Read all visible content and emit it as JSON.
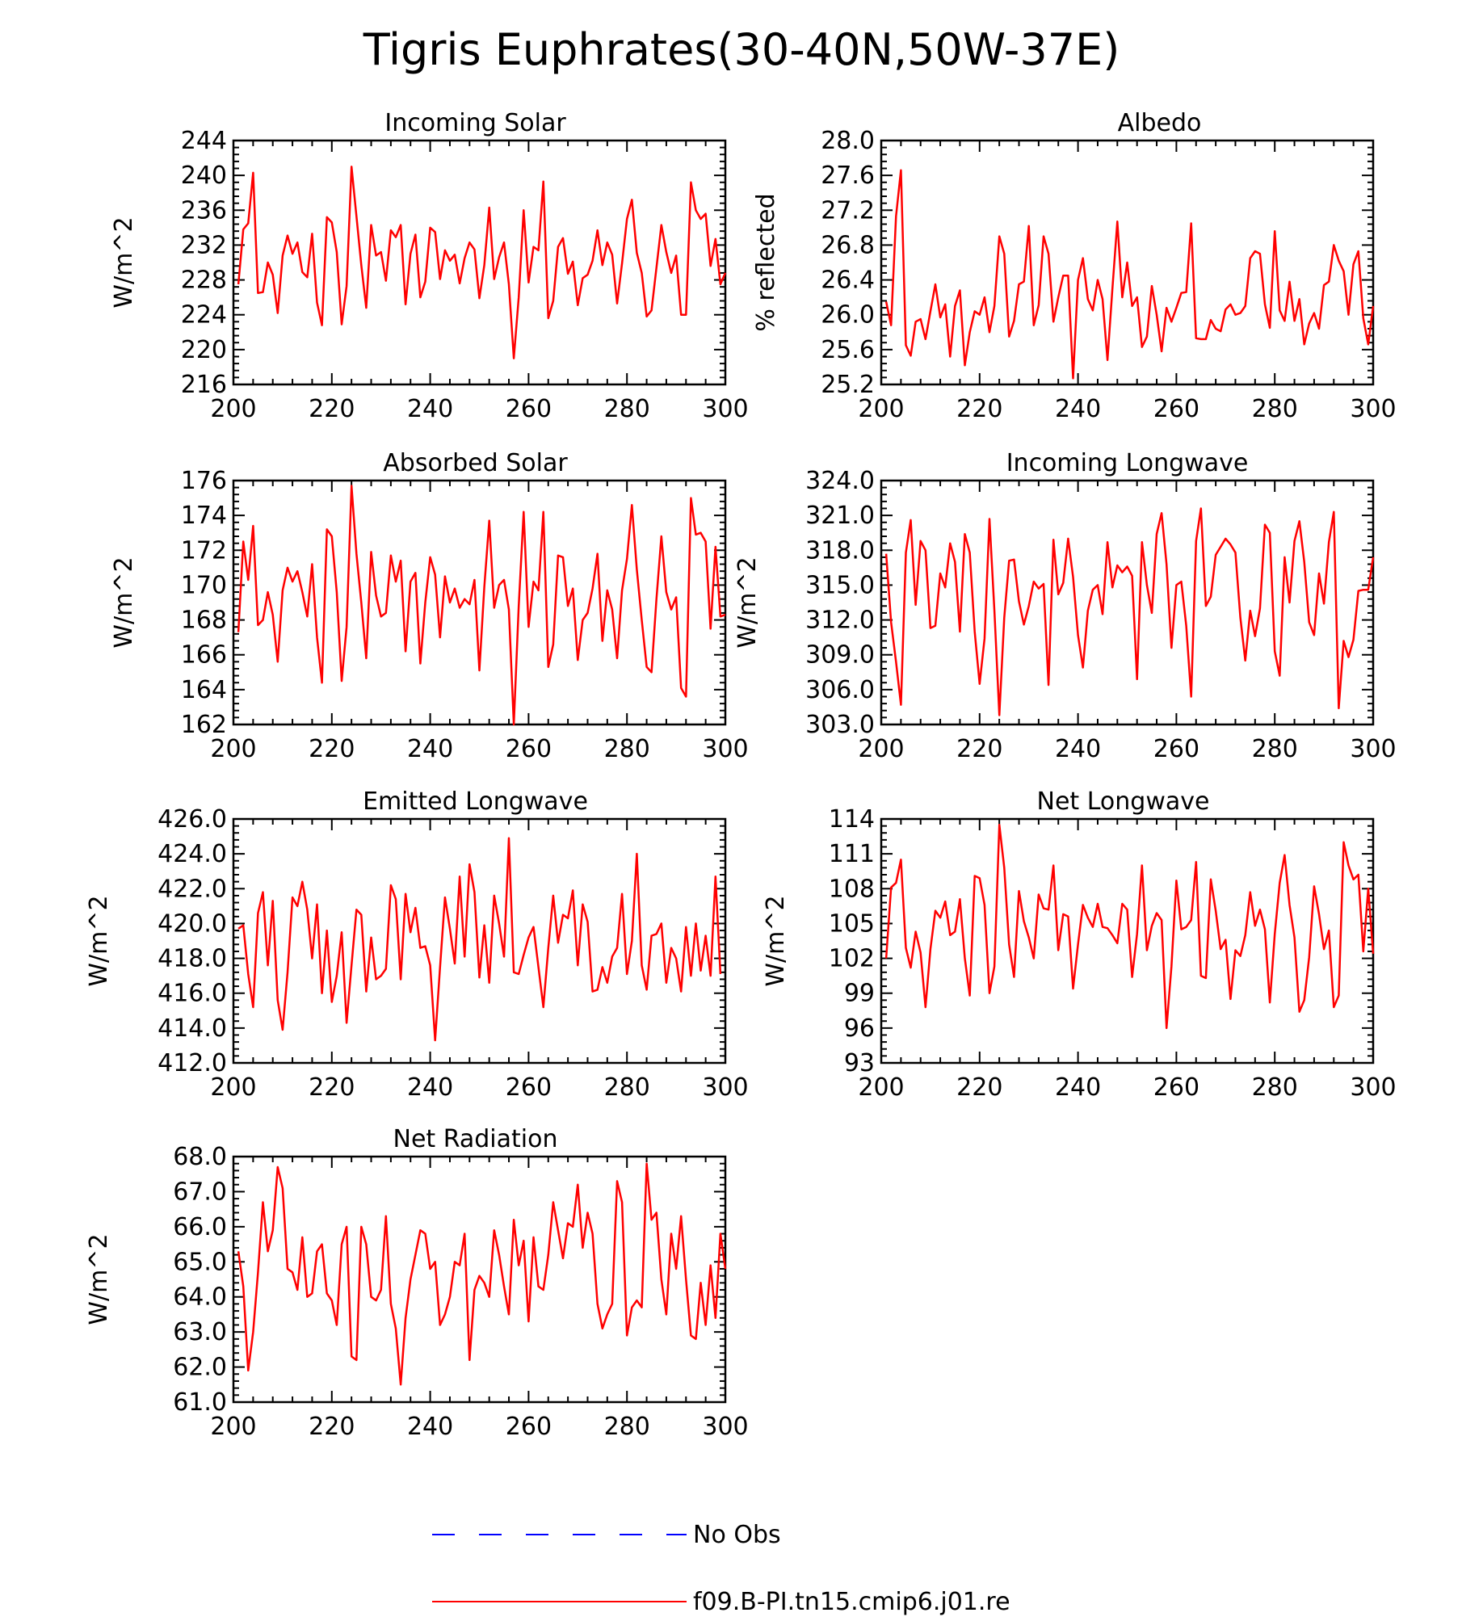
{
  "title": "Tigris Euphrates(30-40N,50W-37E)",
  "colors": {
    "model": "#ff0000",
    "obs": "#0000ff",
    "axis": "#000000"
  },
  "legend": {
    "obs_label": "No Obs",
    "model_label": "f09.B-PI.tn15.cmip6.j01.re"
  },
  "chart_data": [
    {
      "type": "line",
      "title": "Incoming Solar",
      "ylabel": "W/m^2",
      "xlim": [
        200,
        300
      ],
      "ylim": [
        216,
        244
      ],
      "xticks": [
        "200",
        "220",
        "240",
        "260",
        "280",
        "300"
      ],
      "yticks": [
        "216",
        "220",
        "224",
        "228",
        "232",
        "236",
        "240",
        "244"
      ],
      "x_start": 201,
      "series": [
        {
          "name": "f09.B-PI.tn15.cmip6.j01.re",
          "values": [
            227.5,
            233.8,
            234.5,
            240.3,
            226.5,
            226.6,
            230.0,
            228.6,
            224.2,
            230.8,
            233.1,
            231.0,
            232.3,
            228.9,
            228.3,
            233.3,
            225.4,
            222.8,
            235.2,
            234.6,
            231.2,
            222.9,
            227.3,
            241.0,
            235.3,
            229.7,
            224.8,
            234.3,
            230.8,
            231.2,
            227.9,
            233.7,
            232.9,
            234.3,
            225.2,
            231.0,
            233.2,
            226.0,
            227.8,
            234.0,
            233.5,
            228.1,
            231.4,
            230.2,
            230.9,
            227.6,
            230.5,
            232.3,
            231.5,
            225.9,
            229.7,
            236.3,
            228.1,
            230.6,
            232.3,
            227.5,
            219.0,
            226.0,
            236.0,
            227.7,
            231.8,
            231.4,
            239.3,
            223.6,
            225.6,
            231.8,
            232.8,
            228.7,
            230.1,
            225.1,
            228.2,
            228.6,
            230.2,
            233.7,
            229.7,
            232.3,
            230.9,
            225.3,
            229.9,
            235.0,
            237.2,
            231.1,
            228.8,
            223.8,
            224.5,
            229.4,
            234.3,
            231.2,
            228.8,
            230.8,
            224.0,
            224.0,
            239.2,
            236.0,
            235.0,
            235.6,
            229.6,
            232.7,
            227.5,
            228.8
          ]
        }
      ]
    },
    {
      "type": "line",
      "title": "Albedo",
      "ylabel": "% reflected",
      "xlim": [
        200,
        300
      ],
      "ylim": [
        25.2,
        28.0
      ],
      "xticks": [
        "200",
        "220",
        "240",
        "260",
        "280",
        "300"
      ],
      "yticks": [
        "25.2",
        "25.6",
        "26.0",
        "26.4",
        "26.8",
        "27.2",
        "27.6",
        "28.0"
      ],
      "x_start": 201,
      "series": [
        {
          "name": "f09.B-PI.tn15.cmip6.j01.re",
          "values": [
            26.15,
            25.88,
            27.13,
            27.66,
            25.65,
            25.53,
            25.92,
            25.95,
            25.72,
            26.04,
            26.35,
            25.97,
            26.12,
            25.52,
            26.1,
            26.28,
            25.42,
            25.8,
            26.04,
            26.0,
            26.2,
            25.8,
            26.1,
            26.9,
            26.7,
            25.75,
            25.93,
            26.35,
            26.38,
            27.02,
            25.88,
            26.11,
            26.9,
            26.7,
            25.92,
            26.2,
            26.45,
            26.45,
            25.27,
            26.4,
            26.65,
            26.18,
            26.05,
            26.4,
            26.18,
            25.48,
            26.3,
            27.07,
            26.2,
            26.6,
            26.1,
            26.2,
            25.63,
            25.75,
            26.33,
            26.0,
            25.58,
            26.08,
            25.92,
            26.08,
            26.25,
            26.26,
            27.05,
            25.73,
            25.72,
            25.72,
            25.94,
            25.84,
            25.81,
            26.06,
            26.12,
            26.0,
            26.02,
            26.1,
            26.65,
            26.73,
            26.7,
            26.12,
            25.85,
            26.96,
            26.05,
            25.93,
            26.38,
            25.93,
            26.18,
            25.66,
            25.9,
            26.02,
            25.84,
            26.34,
            26.38,
            26.8,
            26.62,
            26.5,
            26.0,
            26.58,
            26.73,
            25.96,
            25.66,
            26.1
          ]
        }
      ]
    },
    {
      "type": "line",
      "title": "Absorbed Solar",
      "ylabel": "W/m^2",
      "xlim": [
        200,
        300
      ],
      "ylim": [
        162,
        176
      ],
      "xticks": [
        "200",
        "220",
        "240",
        "260",
        "280",
        "300"
      ],
      "yticks": [
        "162",
        "164",
        "166",
        "168",
        "170",
        "172",
        "174",
        "176"
      ],
      "x_start": 201,
      "series": [
        {
          "name": "f09.B-PI.tn15.cmip6.j01.re",
          "values": [
            167.3,
            172.5,
            170.3,
            173.4,
            167.7,
            168.0,
            169.6,
            168.3,
            165.6,
            169.7,
            171.0,
            170.2,
            170.8,
            169.6,
            168.2,
            171.2,
            167.0,
            164.4,
            173.2,
            172.8,
            169.6,
            164.5,
            167.6,
            175.7,
            171.8,
            169.0,
            165.8,
            171.9,
            169.4,
            168.2,
            168.4,
            171.7,
            170.2,
            171.4,
            166.2,
            170.2,
            170.7,
            165.5,
            169.0,
            171.6,
            170.6,
            167.0,
            170.5,
            169.0,
            169.8,
            168.7,
            169.2,
            168.9,
            170.3,
            165.1,
            169.9,
            173.7,
            168.7,
            170.0,
            170.3,
            168.6,
            162.0,
            168.8,
            174.2,
            167.6,
            170.2,
            169.7,
            174.2,
            165.3,
            166.6,
            171.7,
            171.6,
            168.8,
            169.8,
            165.7,
            168.0,
            168.4,
            169.8,
            171.8,
            166.8,
            169.7,
            168.6,
            165.8,
            169.7,
            171.5,
            174.6,
            170.9,
            168.0,
            165.3,
            165.0,
            169.2,
            172.8,
            169.6,
            168.6,
            169.3,
            164.1,
            163.6,
            175.0,
            172.9,
            173.0,
            172.5,
            167.5,
            172.2,
            168.2,
            168.3
          ]
        }
      ]
    },
    {
      "type": "line",
      "title": "Incoming Longwave",
      "ylabel": "W/m^2",
      "xlim": [
        200,
        300
      ],
      "ylim": [
        303.0,
        324.0
      ],
      "xticks": [
        "200",
        "220",
        "240",
        "260",
        "280",
        "300"
      ],
      "yticks": [
        "303.0",
        "306.0",
        "309.0",
        "312.0",
        "315.0",
        "318.0",
        "321.0",
        "324.0"
      ],
      "x_start": 201,
      "series": [
        {
          "name": "f09.B-PI.tn15.cmip6.j01.re",
          "values": [
            317.7,
            311.8,
            308.4,
            304.7,
            317.8,
            320.6,
            313.3,
            318.8,
            318.0,
            311.3,
            311.5,
            316.0,
            314.8,
            318.6,
            317.0,
            311.0,
            319.4,
            317.8,
            311.0,
            306.5,
            310.4,
            320.7,
            312.8,
            303.8,
            312.2,
            317.1,
            317.2,
            313.6,
            311.6,
            313.2,
            315.3,
            314.7,
            315.1,
            306.4,
            318.9,
            314.2,
            315.2,
            319.0,
            315.7,
            310.7,
            307.9,
            312.8,
            314.6,
            315.0,
            312.5,
            318.7,
            314.8,
            316.7,
            316.1,
            316.6,
            315.8,
            306.9,
            318.7,
            315.0,
            312.6,
            319.4,
            321.2,
            316.8,
            309.6,
            315.0,
            315.3,
            311.5,
            305.4,
            318.8,
            321.6,
            313.2,
            314.0,
            317.6,
            318.3,
            319.0,
            318.5,
            317.8,
            312.2,
            308.5,
            312.8,
            310.6,
            313.0,
            320.2,
            319.5,
            309.3,
            307.2,
            317.4,
            313.5,
            318.8,
            320.5,
            317.0,
            311.8,
            310.7,
            316.0,
            313.4,
            318.7,
            321.3,
            304.4,
            310.2,
            308.8,
            310.3,
            314.5,
            314.6,
            314.6,
            317.4
          ]
        }
      ]
    },
    {
      "type": "line",
      "title": "Emitted Longwave",
      "ylabel": "W/m^2",
      "xlim": [
        200,
        300
      ],
      "ylim": [
        412.0,
        426.0
      ],
      "xticks": [
        "200",
        "220",
        "240",
        "260",
        "280",
        "300"
      ],
      "yticks": [
        "412.0",
        "414.0",
        "416.0",
        "418.0",
        "420.0",
        "422.0",
        "424.0",
        "426.0"
      ],
      "x_start": 201,
      "series": [
        {
          "name": "f09.B-PI.tn15.cmip6.j01.re",
          "values": [
            419.7,
            419.9,
            417.1,
            415.2,
            420.6,
            421.8,
            417.6,
            421.3,
            415.6,
            413.9,
            417.2,
            421.5,
            421.0,
            422.4,
            420.8,
            418.0,
            421.1,
            416.0,
            419.6,
            415.5,
            417.0,
            419.5,
            414.3,
            417.6,
            420.8,
            420.5,
            416.1,
            419.2,
            416.8,
            417.0,
            417.4,
            422.2,
            421.4,
            416.8,
            421.7,
            419.5,
            420.9,
            418.6,
            418.7,
            417.6,
            413.3,
            417.5,
            421.5,
            419.7,
            417.7,
            422.7,
            418.1,
            423.4,
            421.8,
            416.9,
            419.9,
            416.6,
            421.6,
            420.0,
            418.1,
            424.9,
            417.2,
            417.1,
            418.2,
            419.2,
            419.8,
            417.5,
            415.2,
            418.6,
            421.6,
            418.9,
            420.5,
            420.3,
            421.9,
            417.6,
            421.1,
            420.1,
            416.1,
            416.2,
            417.5,
            416.6,
            418.1,
            418.6,
            421.7,
            417.1,
            419.0,
            424.0,
            417.6,
            416.2,
            419.3,
            419.4,
            420.0,
            416.6,
            418.6,
            418.0,
            416.1,
            419.8,
            417.0,
            420.0,
            417.3,
            419.3,
            417.0,
            422.7,
            417.1
          ]
        }
      ]
    },
    {
      "type": "line",
      "title": "Net Longwave",
      "ylabel": "W/m^2",
      "xlim": [
        200,
        300
      ],
      "ylim": [
        93,
        114
      ],
      "xticks": [
        "200",
        "220",
        "240",
        "260",
        "280",
        "300"
      ],
      "yticks": [
        "93",
        "96",
        "99",
        "102",
        "105",
        "108",
        "111",
        "114"
      ],
      "x_start": 201,
      "series": [
        {
          "name": "f09.B-PI.tn15.cmip6.j01.re",
          "values": [
            102.0,
            108.1,
            108.5,
            110.5,
            102.9,
            101.2,
            104.3,
            102.5,
            97.8,
            102.8,
            106.1,
            105.5,
            106.9,
            104.0,
            104.3,
            107.1,
            102.0,
            98.8,
            109.1,
            108.9,
            106.6,
            99.0,
            101.3,
            113.5,
            109.8,
            103.2,
            100.4,
            107.8,
            105.2,
            103.8,
            102.0,
            107.5,
            106.3,
            106.2,
            110.0,
            102.7,
            105.8,
            105.6,
            99.4,
            103.2,
            106.6,
            105.5,
            104.7,
            106.7,
            104.7,
            104.6,
            104.0,
            103.3,
            106.7,
            106.2,
            100.4,
            104.1,
            110.0,
            102.7,
            104.8,
            105.9,
            105.3,
            96.0,
            101.3,
            108.7,
            104.5,
            104.7,
            105.3,
            110.3,
            100.5,
            100.3,
            108.8,
            106.1,
            102.8,
            103.6,
            98.5,
            102.7,
            102.2,
            104.0,
            107.7,
            104.8,
            106.2,
            104.5,
            98.2,
            104.1,
            108.5,
            110.9,
            106.6,
            103.8,
            97.4,
            98.4,
            102.1,
            108.2,
            105.8,
            102.8,
            104.4,
            97.8,
            98.8,
            112.0,
            110.0,
            108.8,
            109.2,
            102.6,
            108.0,
            102.4
          ]
        }
      ]
    },
    {
      "type": "line",
      "title": "Net Radiation",
      "ylabel": "W/m^2",
      "xlim": [
        200,
        300
      ],
      "ylim": [
        61.0,
        68.0
      ],
      "xticks": [
        "200",
        "220",
        "240",
        "260",
        "280",
        "300"
      ],
      "yticks": [
        "61.0",
        "62.0",
        "63.0",
        "64.0",
        "65.0",
        "66.0",
        "67.0",
        "68.0"
      ],
      "x_start": 201,
      "series": [
        {
          "name": "f09.B-PI.tn15.cmip6.j01.re",
          "values": [
            65.3,
            64.3,
            61.9,
            63.0,
            64.7,
            66.7,
            65.3,
            65.9,
            67.7,
            67.1,
            64.8,
            64.7,
            64.2,
            65.7,
            64.0,
            64.1,
            65.3,
            65.5,
            64.1,
            63.9,
            63.2,
            65.5,
            66.0,
            62.3,
            62.2,
            66.0,
            65.5,
            64.0,
            63.9,
            64.2,
            66.3,
            63.8,
            63.1,
            61.5,
            63.4,
            64.5,
            65.2,
            65.9,
            65.8,
            64.8,
            65.0,
            63.2,
            63.5,
            64.0,
            65.0,
            64.9,
            65.8,
            62.2,
            64.2,
            64.6,
            64.4,
            64.0,
            65.9,
            65.2,
            64.3,
            63.5,
            66.2,
            64.9,
            65.6,
            63.3,
            65.7,
            64.3,
            64.2,
            65.2,
            66.7,
            65.9,
            65.1,
            66.1,
            66.0,
            67.2,
            65.4,
            66.4,
            65.8,
            63.8,
            63.1,
            63.5,
            63.8,
            67.3,
            66.7,
            62.9,
            63.7,
            63.9,
            63.7,
            67.8,
            66.2,
            66.4,
            64.5,
            63.5,
            65.8,
            64.8,
            66.3,
            64.5,
            62.9,
            62.8,
            64.4,
            63.2,
            64.9,
            63.4,
            65.8,
            64.8
          ]
        }
      ]
    }
  ]
}
